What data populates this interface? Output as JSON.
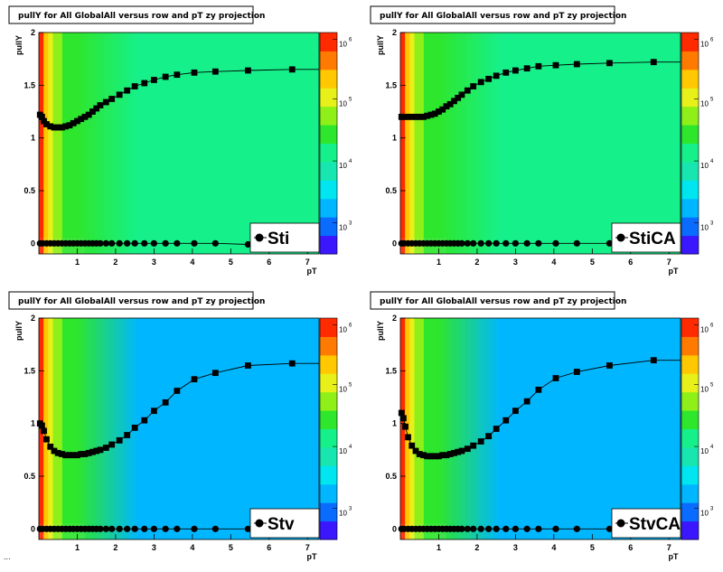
{
  "footer_text": "...",
  "colors": {
    "bg": "#ffffff",
    "marker": "#000000",
    "heatmap_scale": [
      "#3b17ff",
      "#0a6bff",
      "#00b7ff",
      "#00e6f0",
      "#18e6b0",
      "#16f08a",
      "#2ee62c",
      "#8ef018",
      "#e8f01a",
      "#ffc800",
      "#ff7a00",
      "#ff2a00"
    ]
  },
  "chart_data": [
    {
      "type": "heatmap",
      "title": "pullY for All GlobalAll versus row and pT zy projection",
      "xlabel": "pT",
      "ylabel": "pullY",
      "xlim": [
        0,
        7.3
      ],
      "ylim": [
        -0.1,
        2
      ],
      "x_ticks": [
        "1",
        "2",
        "3",
        "4",
        "5",
        "6",
        "7"
      ],
      "y_ticks": [
        "0",
        "0.5",
        "1",
        "1.5",
        "2"
      ],
      "colorbar_ticks": [
        {
          "base": "10",
          "exp": "3"
        },
        {
          "base": "10",
          "exp": "4"
        },
        {
          "base": "10",
          "exp": "5"
        },
        {
          "base": "10",
          "exp": "6"
        }
      ],
      "legend": "Sti",
      "mean_profile": [
        [
          0.03,
          1.22
        ],
        [
          0.08,
          1.2
        ],
        [
          0.13,
          1.16
        ],
        [
          0.2,
          1.13
        ],
        [
          0.3,
          1.11
        ],
        [
          0.4,
          1.1
        ],
        [
          0.5,
          1.1
        ],
        [
          0.6,
          1.1
        ],
        [
          0.7,
          1.11
        ],
        [
          0.8,
          1.12
        ],
        [
          0.9,
          1.14
        ],
        [
          1.0,
          1.16
        ],
        [
          1.1,
          1.18
        ],
        [
          1.2,
          1.2
        ],
        [
          1.3,
          1.22
        ],
        [
          1.4,
          1.25
        ],
        [
          1.5,
          1.28
        ],
        [
          1.6,
          1.31
        ],
        [
          1.75,
          1.34
        ],
        [
          1.9,
          1.37
        ],
        [
          2.1,
          1.41
        ],
        [
          2.3,
          1.45
        ],
        [
          2.5,
          1.49
        ],
        [
          2.75,
          1.52
        ],
        [
          3.0,
          1.55
        ],
        [
          3.3,
          1.58
        ],
        [
          3.6,
          1.6
        ],
        [
          4.05,
          1.62
        ],
        [
          4.6,
          1.63
        ],
        [
          5.45,
          1.64
        ],
        [
          6.6,
          1.65
        ]
      ],
      "rms_profile": [
        [
          0.03,
          0.0
        ],
        [
          0.1,
          0.0
        ],
        [
          0.2,
          0.0
        ],
        [
          0.3,
          0.0
        ],
        [
          0.4,
          0.0
        ],
        [
          0.5,
          0.0
        ],
        [
          0.6,
          0.0
        ],
        [
          0.7,
          0.0
        ],
        [
          0.8,
          0.0
        ],
        [
          0.9,
          0.0
        ],
        [
          1.0,
          0.0
        ],
        [
          1.1,
          0.0
        ],
        [
          1.2,
          0.0
        ],
        [
          1.3,
          0.0
        ],
        [
          1.4,
          0.0
        ],
        [
          1.5,
          0.0
        ],
        [
          1.6,
          0.0
        ],
        [
          1.75,
          0.0
        ],
        [
          1.9,
          0.0
        ],
        [
          2.1,
          0.0
        ],
        [
          2.3,
          0.0
        ],
        [
          2.5,
          0.0
        ],
        [
          2.75,
          0.0
        ],
        [
          3.0,
          0.0
        ],
        [
          3.3,
          0.0
        ],
        [
          3.6,
          0.0
        ],
        [
          4.05,
          0.0
        ],
        [
          4.6,
          0.0
        ],
        [
          5.45,
          -0.01
        ],
        [
          6.6,
          0.0
        ]
      ],
      "high_pt_color": "#16f08a"
    },
    {
      "type": "heatmap",
      "title": "pullY for All GlobalAll versus row and pT zy projection",
      "xlabel": "pT",
      "ylabel": "pullY",
      "xlim": [
        0,
        7.3
      ],
      "ylim": [
        -0.1,
        2
      ],
      "x_ticks": [
        "1",
        "2",
        "3",
        "4",
        "5",
        "6",
        "7"
      ],
      "y_ticks": [
        "0",
        "0.5",
        "1",
        "1.5",
        "2"
      ],
      "colorbar_ticks": [
        {
          "base": "10",
          "exp": "3"
        },
        {
          "base": "10",
          "exp": "4"
        },
        {
          "base": "10",
          "exp": "5"
        },
        {
          "base": "10",
          "exp": "6"
        }
      ],
      "legend": "StiCA",
      "mean_profile": [
        [
          0.03,
          1.2
        ],
        [
          0.1,
          1.2
        ],
        [
          0.2,
          1.2
        ],
        [
          0.3,
          1.2
        ],
        [
          0.4,
          1.2
        ],
        [
          0.5,
          1.2
        ],
        [
          0.6,
          1.2
        ],
        [
          0.7,
          1.21
        ],
        [
          0.8,
          1.22
        ],
        [
          0.9,
          1.23
        ],
        [
          1.0,
          1.25
        ],
        [
          1.1,
          1.27
        ],
        [
          1.2,
          1.3
        ],
        [
          1.3,
          1.32
        ],
        [
          1.4,
          1.35
        ],
        [
          1.5,
          1.38
        ],
        [
          1.6,
          1.41
        ],
        [
          1.75,
          1.45
        ],
        [
          1.9,
          1.49
        ],
        [
          2.1,
          1.53
        ],
        [
          2.3,
          1.56
        ],
        [
          2.5,
          1.59
        ],
        [
          2.75,
          1.62
        ],
        [
          3.0,
          1.64
        ],
        [
          3.3,
          1.66
        ],
        [
          3.6,
          1.68
        ],
        [
          4.05,
          1.69
        ],
        [
          4.6,
          1.7
        ],
        [
          5.45,
          1.71
        ],
        [
          6.6,
          1.72
        ]
      ],
      "rms_profile": [
        [
          0.03,
          0.0
        ],
        [
          0.1,
          0.0
        ],
        [
          0.2,
          0.0
        ],
        [
          0.3,
          0.0
        ],
        [
          0.4,
          0.0
        ],
        [
          0.5,
          0.0
        ],
        [
          0.6,
          0.0
        ],
        [
          0.7,
          0.0
        ],
        [
          0.8,
          0.0
        ],
        [
          0.9,
          0.0
        ],
        [
          1.0,
          0.0
        ],
        [
          1.1,
          0.0
        ],
        [
          1.2,
          0.0
        ],
        [
          1.3,
          0.0
        ],
        [
          1.4,
          0.0
        ],
        [
          1.5,
          0.0
        ],
        [
          1.6,
          0.0
        ],
        [
          1.75,
          0.0
        ],
        [
          1.9,
          0.0
        ],
        [
          2.1,
          0.0
        ],
        [
          2.3,
          0.0
        ],
        [
          2.5,
          0.0
        ],
        [
          2.75,
          0.0
        ],
        [
          3.0,
          0.0
        ],
        [
          3.3,
          0.0
        ],
        [
          3.6,
          0.0
        ],
        [
          4.05,
          0.0
        ],
        [
          4.6,
          0.0
        ],
        [
          5.45,
          0.0
        ],
        [
          6.6,
          0.0
        ]
      ],
      "high_pt_color": "#16f08a"
    },
    {
      "type": "heatmap",
      "title": "pullY for All GlobalAll versus row and pT zy projection",
      "xlabel": "pT",
      "ylabel": "pullY",
      "xlim": [
        0,
        7.3
      ],
      "ylim": [
        -0.1,
        2
      ],
      "x_ticks": [
        "1",
        "2",
        "3",
        "4",
        "5",
        "6",
        "7"
      ],
      "y_ticks": [
        "0",
        "0.5",
        "1",
        "1.5",
        "2"
      ],
      "colorbar_ticks": [
        {
          "base": "10",
          "exp": "3"
        },
        {
          "base": "10",
          "exp": "4"
        },
        {
          "base": "10",
          "exp": "5"
        },
        {
          "base": "10",
          "exp": "6"
        }
      ],
      "legend": "Stv",
      "mean_profile": [
        [
          0.03,
          1.0
        ],
        [
          0.08,
          0.98
        ],
        [
          0.13,
          0.93
        ],
        [
          0.2,
          0.85
        ],
        [
          0.3,
          0.78
        ],
        [
          0.4,
          0.74
        ],
        [
          0.5,
          0.72
        ],
        [
          0.6,
          0.71
        ],
        [
          0.7,
          0.7
        ],
        [
          0.8,
          0.7
        ],
        [
          0.9,
          0.7
        ],
        [
          1.0,
          0.7
        ],
        [
          1.1,
          0.71
        ],
        [
          1.2,
          0.71
        ],
        [
          1.3,
          0.72
        ],
        [
          1.4,
          0.73
        ],
        [
          1.5,
          0.74
        ],
        [
          1.6,
          0.75
        ],
        [
          1.75,
          0.77
        ],
        [
          1.9,
          0.8
        ],
        [
          2.1,
          0.84
        ],
        [
          2.3,
          0.89
        ],
        [
          2.5,
          0.96
        ],
        [
          2.75,
          1.03
        ],
        [
          3.0,
          1.12
        ],
        [
          3.3,
          1.2
        ],
        [
          3.6,
          1.31
        ],
        [
          4.05,
          1.42
        ],
        [
          4.6,
          1.48
        ],
        [
          5.45,
          1.55
        ],
        [
          6.6,
          1.57
        ]
      ],
      "rms_profile": [
        [
          0.03,
          0.0
        ],
        [
          0.1,
          0.0
        ],
        [
          0.2,
          0.0
        ],
        [
          0.3,
          0.0
        ],
        [
          0.4,
          0.0
        ],
        [
          0.5,
          0.0
        ],
        [
          0.6,
          0.0
        ],
        [
          0.7,
          0.0
        ],
        [
          0.8,
          0.0
        ],
        [
          0.9,
          0.0
        ],
        [
          1.0,
          0.0
        ],
        [
          1.1,
          0.0
        ],
        [
          1.2,
          0.0
        ],
        [
          1.3,
          0.0
        ],
        [
          1.4,
          0.0
        ],
        [
          1.5,
          0.0
        ],
        [
          1.6,
          0.0
        ],
        [
          1.75,
          0.0
        ],
        [
          1.9,
          0.0
        ],
        [
          2.1,
          0.0
        ],
        [
          2.3,
          0.0
        ],
        [
          2.5,
          0.0
        ],
        [
          2.75,
          0.0
        ],
        [
          3.0,
          0.0
        ],
        [
          3.3,
          0.0
        ],
        [
          3.6,
          0.0
        ],
        [
          4.05,
          0.0
        ],
        [
          4.6,
          0.0
        ],
        [
          5.45,
          0.0
        ],
        [
          6.6,
          0.0
        ]
      ],
      "high_pt_color": "#00b7ff"
    },
    {
      "type": "heatmap",
      "title": "pullY for All GlobalAll versus row and pT zy projection",
      "xlabel": "pT",
      "ylabel": "pullY",
      "xlim": [
        0,
        7.3
      ],
      "ylim": [
        -0.1,
        2
      ],
      "x_ticks": [
        "1",
        "2",
        "3",
        "4",
        "5",
        "6",
        "7"
      ],
      "y_ticks": [
        "0",
        "0.5",
        "1",
        "1.5",
        "2"
      ],
      "colorbar_ticks": [
        {
          "base": "10",
          "exp": "3"
        },
        {
          "base": "10",
          "exp": "4"
        },
        {
          "base": "10",
          "exp": "5"
        },
        {
          "base": "10",
          "exp": "6"
        }
      ],
      "legend": "StvCA",
      "mean_profile": [
        [
          0.03,
          1.1
        ],
        [
          0.08,
          1.05
        ],
        [
          0.13,
          0.97
        ],
        [
          0.2,
          0.87
        ],
        [
          0.3,
          0.79
        ],
        [
          0.4,
          0.74
        ],
        [
          0.5,
          0.71
        ],
        [
          0.6,
          0.7
        ],
        [
          0.7,
          0.69
        ],
        [
          0.8,
          0.69
        ],
        [
          0.9,
          0.69
        ],
        [
          1.0,
          0.69
        ],
        [
          1.1,
          0.7
        ],
        [
          1.2,
          0.7
        ],
        [
          1.3,
          0.71
        ],
        [
          1.4,
          0.72
        ],
        [
          1.5,
          0.73
        ],
        [
          1.6,
          0.74
        ],
        [
          1.75,
          0.76
        ],
        [
          1.9,
          0.79
        ],
        [
          2.1,
          0.83
        ],
        [
          2.3,
          0.88
        ],
        [
          2.5,
          0.95
        ],
        [
          2.75,
          1.03
        ],
        [
          3.0,
          1.12
        ],
        [
          3.3,
          1.21
        ],
        [
          3.6,
          1.32
        ],
        [
          4.05,
          1.43
        ],
        [
          4.6,
          1.49
        ],
        [
          5.45,
          1.55
        ],
        [
          6.6,
          1.6
        ]
      ],
      "rms_profile": [
        [
          0.03,
          0.0
        ],
        [
          0.1,
          0.0
        ],
        [
          0.2,
          0.0
        ],
        [
          0.3,
          0.0
        ],
        [
          0.4,
          0.0
        ],
        [
          0.5,
          0.0
        ],
        [
          0.6,
          0.0
        ],
        [
          0.7,
          0.0
        ],
        [
          0.8,
          0.0
        ],
        [
          0.9,
          0.0
        ],
        [
          1.0,
          0.0
        ],
        [
          1.1,
          0.0
        ],
        [
          1.2,
          0.0
        ],
        [
          1.3,
          0.0
        ],
        [
          1.4,
          0.0
        ],
        [
          1.5,
          0.0
        ],
        [
          1.6,
          0.0
        ],
        [
          1.75,
          0.0
        ],
        [
          1.9,
          0.0
        ],
        [
          2.1,
          0.0
        ],
        [
          2.3,
          0.0
        ],
        [
          2.5,
          0.0
        ],
        [
          2.75,
          0.0
        ],
        [
          3.0,
          0.0
        ],
        [
          3.3,
          0.0
        ],
        [
          3.6,
          0.0
        ],
        [
          4.05,
          0.0
        ],
        [
          4.6,
          0.0
        ],
        [
          5.45,
          0.0
        ],
        [
          6.6,
          0.0
        ]
      ],
      "high_pt_color": "#00b7ff"
    }
  ]
}
